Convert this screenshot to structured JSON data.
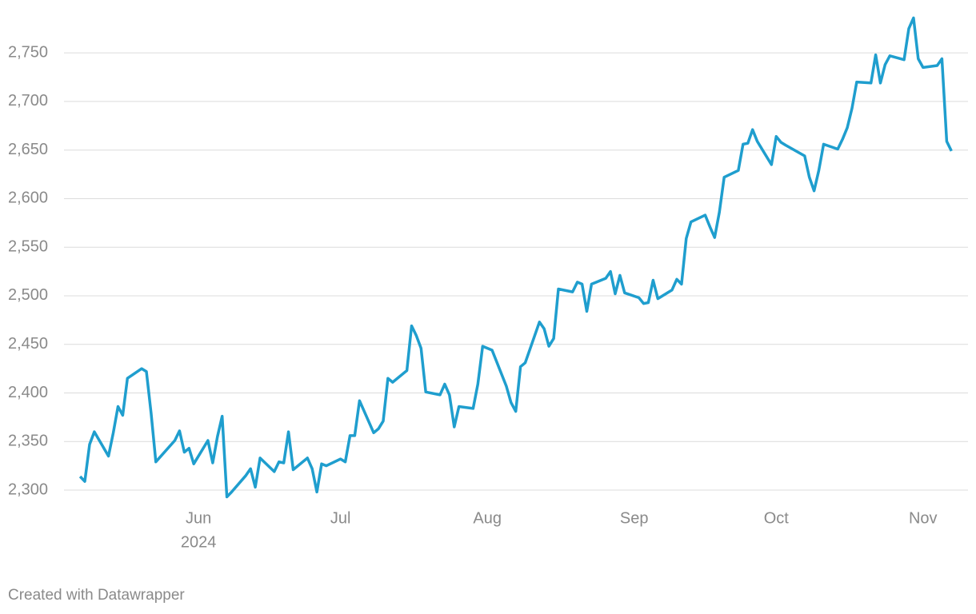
{
  "chart_data": {
    "type": "line",
    "x": [
      128,
      129,
      130,
      131,
      134,
      135,
      136,
      137,
      138,
      141,
      142,
      143,
      144,
      148,
      149,
      150,
      151,
      152,
      155,
      156,
      157,
      158,
      159,
      160,
      163,
      164,
      165,
      166,
      169,
      170,
      171,
      172,
      173,
      176,
      177,
      178,
      179,
      180,
      183,
      184,
      185,
      186,
      187,
      190,
      191,
      192,
      193,
      194,
      197,
      198,
      199,
      200,
      201,
      204,
      205,
      206,
      207,
      208,
      211,
      212,
      213,
      215,
      218,
      219,
      220,
      221,
      222,
      225,
      226,
      227,
      228,
      229,
      232,
      233,
      234,
      235,
      236,
      239,
      240,
      241,
      242,
      243,
      246,
      247,
      248,
      249,
      250,
      253,
      254,
      255,
      256,
      257,
      260,
      261,
      262,
      263,
      264,
      267,
      268,
      269,
      270,
      271,
      274,
      275,
      276,
      277,
      281,
      282,
      283,
      284,
      285,
      288,
      289,
      290,
      291,
      292,
      295,
      296,
      297,
      298,
      299,
      302,
      303,
      304,
      305,
      306,
      309,
      310,
      311,
      312
    ],
    "series": [
      {
        "color": "#1f9ece",
        "values": [
          2314,
          2309,
          2347,
          2360,
          2335,
          2359,
          2386,
          2377,
          2415,
          2425,
          2422,
          2379,
          2329,
          2351,
          2361,
          2339,
          2343,
          2327,
          2351,
          2328,
          2355,
          2376,
          2293,
          2298,
          2315,
          2322,
          2303,
          2333,
          2319,
          2329,
          2328,
          2360,
          2321,
          2333,
          2322,
          2298,
          2327,
          2325,
          2332,
          2329,
          2356,
          2356,
          2392,
          2359,
          2363,
          2371,
          2415,
          2411,
          2423,
          2469,
          2459,
          2446,
          2401,
          2398,
          2409,
          2398,
          2365,
          2386,
          2384,
          2409,
          2448,
          2444,
          2407,
          2390,
          2381,
          2427,
          2431,
          2473,
          2466,
          2448,
          2456,
          2507,
          2504,
          2514,
          2512,
          2484,
          2512,
          2518,
          2525,
          2502,
          2521,
          2503,
          2498,
          2492,
          2493,
          2516,
          2497,
          2506,
          2517,
          2512,
          2559,
          2576,
          2583,
          2571,
          2560,
          2586,
          2622,
          2629,
          2656,
          2657,
          2671,
          2659,
          2635,
          2664,
          2658,
          2655,
          2644,
          2622,
          2608,
          2629,
          2656,
          2651,
          2661,
          2673,
          2693,
          2720,
          2719,
          2748,
          2719,
          2738,
          2747,
          2743,
          2775,
          2786,
          2744,
          2735,
          2737,
          2744,
          2659,
          2649
        ]
      }
    ],
    "xlim": [
      124.6,
      315.5
    ],
    "xticks": [
      {
        "value": 153,
        "label": "Jun"
      },
      {
        "value": 183,
        "label": "Jul"
      },
      {
        "value": 214,
        "label": "Aug"
      },
      {
        "value": 245,
        "label": "Sep"
      },
      {
        "value": 275,
        "label": "Oct"
      },
      {
        "value": 306,
        "label": "Nov"
      }
    ],
    "x_sublabel": "2024",
    "ylim": [
      2286,
      2788
    ],
    "yticks": [
      {
        "value": 2300,
        "label": "2,300"
      },
      {
        "value": 2350,
        "label": "2,350"
      },
      {
        "value": 2400,
        "label": "2,400"
      },
      {
        "value": 2450,
        "label": "2,450"
      },
      {
        "value": 2500,
        "label": "2,500"
      },
      {
        "value": 2550,
        "label": "2,550"
      },
      {
        "value": 2600,
        "label": "2,600"
      },
      {
        "value": 2650,
        "label": "2,650"
      },
      {
        "value": 2700,
        "label": "2,700"
      },
      {
        "value": 2750,
        "label": "2,750"
      }
    ],
    "grid": true
  },
  "footer": "Created with Datawrapper"
}
